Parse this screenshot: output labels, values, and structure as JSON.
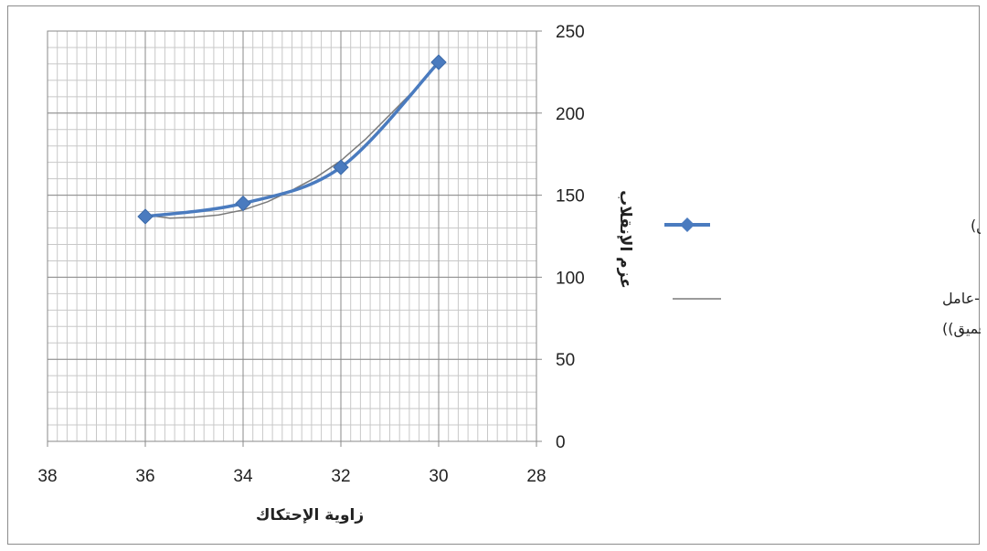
{
  "chart_data": {
    "type": "line",
    "xlabel": "زاوية الإحتكاك",
    "ylabel": "عزم الإنقلاب",
    "xlim": [
      28,
      38
    ],
    "x_reversed": true,
    "ylim": [
      0,
      250
    ],
    "x_ticks": [
      "38",
      "36",
      "34",
      "32",
      "30",
      "28"
    ],
    "y_ticks": [
      "0",
      "50",
      "100",
      "150",
      "200",
      "250"
    ],
    "grid": true,
    "legend_position": "right",
    "x": [
      36,
      34,
      32,
      30
    ],
    "series": [
      {
        "name": "احتكاك-عامل أمان(قص عميق)",
        "values": [
          137,
          145,
          167,
          231
        ],
        "color": "#4a7bbf",
        "marker": "diamond"
      },
      {
        "name_lines": [
          "متعدد الحدود (احتكاك-عامل",
          "أمان(قص عميق))"
        ],
        "type": "polynomial-trendline",
        "curve_x": [
          36,
          35.5,
          35,
          34.5,
          34,
          33.5,
          33,
          32.5,
          32,
          31.5,
          31,
          30.5,
          30
        ],
        "curve_y": [
          138,
          136,
          136.5,
          138,
          141,
          146,
          153,
          161,
          171,
          184,
          199,
          214,
          231
        ],
        "color": "#7a7a7a"
      }
    ]
  }
}
